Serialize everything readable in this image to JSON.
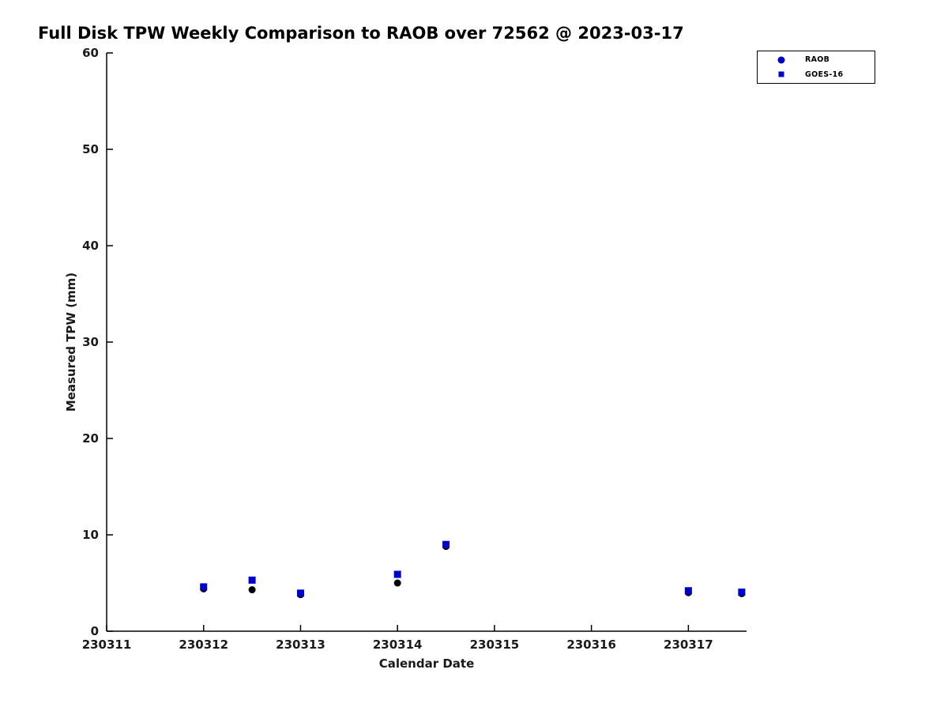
{
  "title": "Full Disk TPW Weekly Comparison to RAOB over 72562 @ 2023-03-17",
  "chart_data": {
    "type": "scatter",
    "title": "Full Disk TPW Weekly Comparison to RAOB over 72562 @ 2023-03-17",
    "xlabel": "Calendar Date",
    "ylabel": "Measured TPW (mm)",
    "xlim": [
      230311,
      230317.6
    ],
    "ylim": [
      0,
      60
    ],
    "xticks": [
      230311,
      230312,
      230313,
      230314,
      230315,
      230316,
      230317
    ],
    "yticks": [
      0,
      10,
      20,
      30,
      40,
      50,
      60
    ],
    "grid": false,
    "legend_position": "top-right",
    "series": [
      {
        "name": "RAOB",
        "marker": "circle",
        "color": "#000000",
        "legend_color": "#0000cc",
        "points": [
          [
            230312.0,
            4.4
          ],
          [
            230312.5,
            4.3
          ],
          [
            230313.0,
            3.8
          ],
          [
            230314.0,
            5.0
          ],
          [
            230314.5,
            8.8
          ],
          [
            230317.0,
            4.0
          ],
          [
            230317.55,
            3.9
          ]
        ]
      },
      {
        "name": "GOES-16",
        "marker": "square",
        "color": "#0000cc",
        "legend_color": "#0000cc",
        "points": [
          [
            230312.0,
            4.6
          ],
          [
            230312.5,
            5.3
          ],
          [
            230313.0,
            3.95
          ],
          [
            230314.0,
            5.9
          ],
          [
            230314.5,
            9.0
          ],
          [
            230317.0,
            4.2
          ],
          [
            230317.55,
            4.05
          ]
        ]
      }
    ]
  }
}
